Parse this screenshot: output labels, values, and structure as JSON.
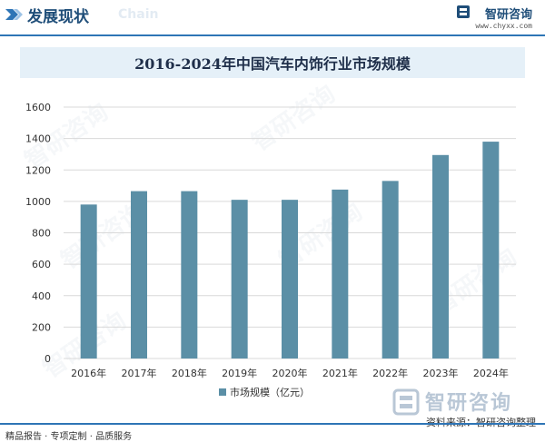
{
  "header": {
    "section_title": "发展现状",
    "ghost_text": "Chain",
    "brand_name": "智研咨询",
    "brand_url": "www.chyxx.com"
  },
  "chart_data": {
    "type": "bar",
    "title": "2016-2024年中国汽车内饰行业市场规模",
    "categories": [
      "2016年",
      "2017年",
      "2018年",
      "2019年",
      "2020年",
      "2021年",
      "2022年",
      "2023年",
      "2024年"
    ],
    "series": [
      {
        "name": "市场规模（亿元）",
        "values": [
          980,
          1065,
          1065,
          1010,
          1010,
          1075,
          1130,
          1295,
          1380
        ]
      }
    ],
    "ylim": [
      0,
      1600
    ],
    "yticks": [
      0,
      200,
      400,
      600,
      800,
      1000,
      1200,
      1400,
      1600
    ],
    "grid": true,
    "legend_position": "bottom",
    "color": "#5b8fa6"
  },
  "footer": {
    "left_text": "精品报告 · 专项定制 · 品质服务",
    "source_text": "资料来源：智研咨询整理",
    "watermark_brand": "智研咨询"
  }
}
